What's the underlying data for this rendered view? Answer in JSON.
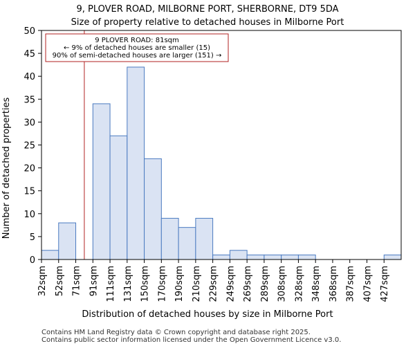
{
  "chart_data": {
    "type": "bar",
    "title": "9, PLOVER ROAD, MILBORNE PORT, SHERBORNE, DT9 5DA",
    "subtitle": "Size of property relative to detached houses in Milborne Port",
    "xlabel": "Distribution of detached houses by size in Milborne Port",
    "ylabel": "Number of detached properties",
    "categories": [
      "32sqm",
      "52sqm",
      "71sqm",
      "91sqm",
      "111sqm",
      "131sqm",
      "150sqm",
      "170sqm",
      "190sqm",
      "210sqm",
      "229sqm",
      "249sqm",
      "269sqm",
      "289sqm",
      "308sqm",
      "328sqm",
      "348sqm",
      "368sqm",
      "387sqm",
      "407sqm",
      "427sqm"
    ],
    "values": [
      2,
      8,
      0,
      34,
      27,
      42,
      22,
      9,
      7,
      9,
      1,
      2,
      1,
      1,
      1,
      1,
      0,
      0,
      0,
      0,
      1
    ],
    "ylim": [
      0,
      50
    ],
    "yticks": [
      0,
      5,
      10,
      15,
      20,
      25,
      30,
      35,
      40,
      45,
      50
    ],
    "bar_color": "#dae3f3",
    "bar_edge_color": "#4a7ac0",
    "marker": {
      "value_sqm": 81,
      "color": "#b22222",
      "label_lines": [
        "9 PLOVER ROAD: 81sqm",
        "← 9% of detached houses are smaller (15)",
        "90% of semi-detached houses are larger (151) →"
      ]
    },
    "grid": false
  },
  "footer": {
    "line1": "Contains HM Land Registry data © Crown copyright and database right 2025.",
    "line2": "Contains public sector information licensed under the Open Government Licence v3.0."
  }
}
